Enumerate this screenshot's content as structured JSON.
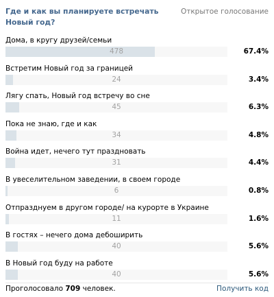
{
  "poll": {
    "question": "Где и как вы планируете встречать Новый год?",
    "type_label": "Открытое голосование",
    "options": [
      {
        "label": "Дома, в кругу друзей/семьи",
        "count": "478",
        "percent": "67.4%",
        "share": 0.674
      },
      {
        "label": "Встретим Новый год за границей",
        "count": "24",
        "percent": "3.4%",
        "share": 0.034
      },
      {
        "label": "Лягу спать, Новый год встречу во сне",
        "count": "45",
        "percent": "6.3%",
        "share": 0.063
      },
      {
        "label": "Пока не знаю, где и как",
        "count": "34",
        "percent": "4.8%",
        "share": 0.048
      },
      {
        "label": "Война идет, нечего тут праздновать",
        "count": "31",
        "percent": "4.4%",
        "share": 0.044
      },
      {
        "label": "В увеселительном заведении, в своем городе",
        "count": "6",
        "percent": "0.8%",
        "share": 0.008
      },
      {
        "label": "Отпразднуем в другом городе/ на курорте в Украине",
        "count": "11",
        "percent": "1.6%",
        "share": 0.016
      },
      {
        "label": "В гостях – нечего дома дебоширить",
        "count": "40",
        "percent": "5.6%",
        "share": 0.056
      },
      {
        "label": "В Новый год буду на работе",
        "count": "40",
        "percent": "5.6%",
        "share": 0.056
      }
    ],
    "footer": {
      "voted_prefix": "Проголосовало",
      "voted_total": "709",
      "voted_suffix": "человек.",
      "get_code_label": "Получить код"
    }
  },
  "colors": {
    "title": "#45688e",
    "bar_fill": "#dae2e8",
    "bar_track": "#f7f7f7",
    "count_text": "#a2a2a2",
    "link": "#2b587a"
  }
}
